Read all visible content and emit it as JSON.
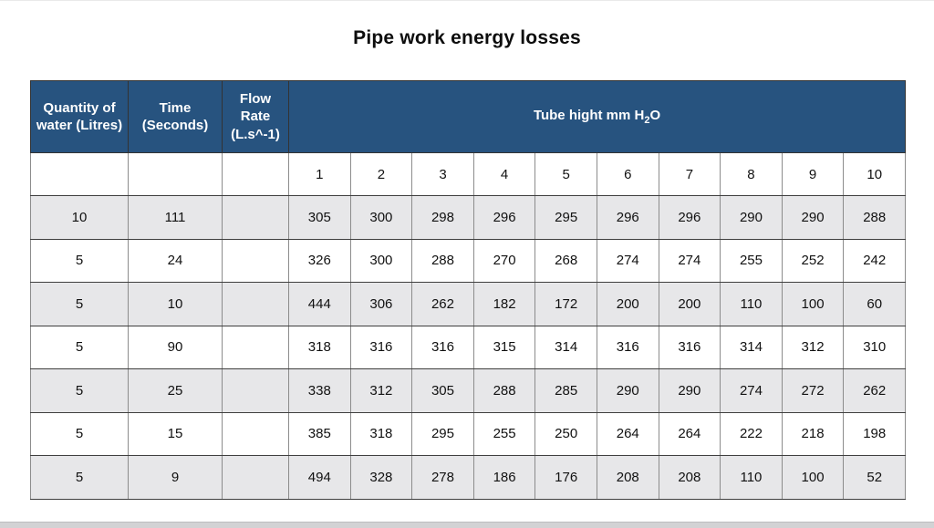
{
  "title": "Pipe work energy losses",
  "table": {
    "headers": {
      "quantity": "Quantity of water (Litres)",
      "time": "Time (Seconds)",
      "flow_rate": "Flow Rate (L.s^-1)",
      "tube_height": {
        "prefix": "Tube hight mm H",
        "sub": "2",
        "suffix": "O"
      }
    },
    "tube_columns": [
      "1",
      "2",
      "3",
      "4",
      "5",
      "6",
      "7",
      "8",
      "9",
      "10"
    ],
    "rows": [
      {
        "quantity": "10",
        "time": "111",
        "flow_rate": "",
        "values": [
          "305",
          "300",
          "298",
          "296",
          "295",
          "296",
          "296",
          "290",
          "290",
          "288"
        ]
      },
      {
        "quantity": "5",
        "time": "24",
        "flow_rate": "",
        "values": [
          "326",
          "300",
          "288",
          "270",
          "268",
          "274",
          "274",
          "255",
          "252",
          "242"
        ]
      },
      {
        "quantity": "5",
        "time": "10",
        "flow_rate": "",
        "values": [
          "444",
          "306",
          "262",
          "182",
          "172",
          "200",
          "200",
          "110",
          "100",
          "60"
        ]
      },
      {
        "quantity": "5",
        "time": "90",
        "flow_rate": "",
        "values": [
          "318",
          "316",
          "316",
          "315",
          "314",
          "316",
          "316",
          "314",
          "312",
          "310"
        ]
      },
      {
        "quantity": "5",
        "time": "25",
        "flow_rate": "",
        "values": [
          "338",
          "312",
          "305",
          "288",
          "285",
          "290",
          "290",
          "274",
          "272",
          "262"
        ]
      },
      {
        "quantity": "5",
        "time": "15",
        "flow_rate": "",
        "values": [
          "385",
          "318",
          "295",
          "255",
          "250",
          "264",
          "264",
          "222",
          "218",
          "198"
        ]
      },
      {
        "quantity": "5",
        "time": "9",
        "flow_rate": "",
        "values": [
          "494",
          "328",
          "278",
          "186",
          "176",
          "208",
          "208",
          "110",
          "100",
          "52"
        ]
      }
    ]
  },
  "colors": {
    "header_bg": "#27537f",
    "header_text": "#ffffff",
    "stripe_bg": "#e7e7e9",
    "row_border": "#3f3f3f",
    "column_border": "#8c8c8c",
    "bottom_bar": "#d2d2d4",
    "text": "#111111"
  }
}
